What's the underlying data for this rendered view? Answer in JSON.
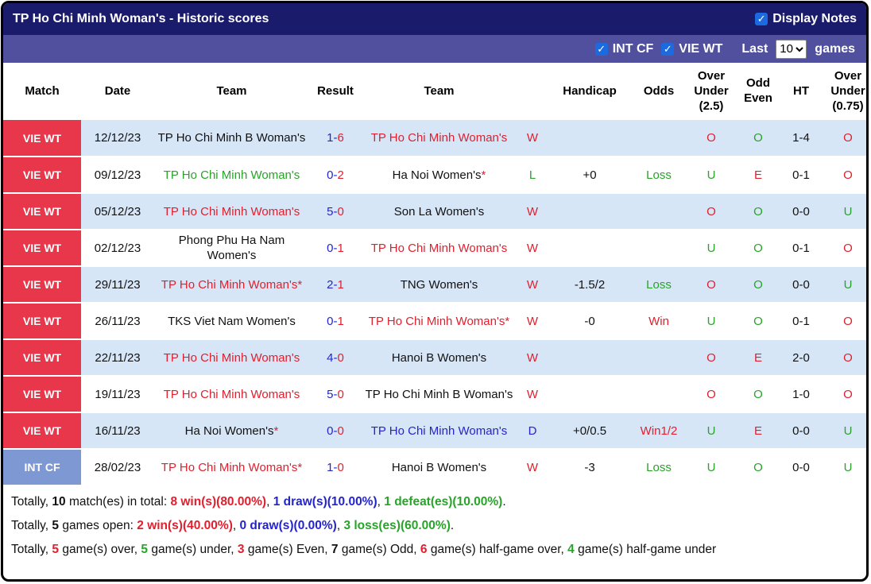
{
  "header": {
    "title": "TP Ho Chi Minh Woman's - Historic scores",
    "display_notes_label": "Display Notes"
  },
  "filter_bar": {
    "int_cf_label": "INT CF",
    "vie_wt_label": "VIE WT",
    "last_label": "Last",
    "last_value": "10",
    "games_label": "games"
  },
  "columns": [
    "Match",
    "Date",
    "Team",
    "Result",
    "Team",
    "",
    "Handicap",
    "Odds",
    "Over Under (2.5)",
    "Odd Even",
    "HT",
    "Over Under (0.75)"
  ],
  "colors": {
    "red": "#e0202e",
    "green": "#29a329",
    "blue": "#2424cc",
    "black": "#111111",
    "badge_red": "#e8364a",
    "badge_int": "#7e98d4",
    "header_navy": "#1b1b6b",
    "filter_bar_bg": "#50509f",
    "row_alt_blue": "#d7e6f7",
    "checkbox_blue": "#1b6ae0"
  },
  "rows": [
    {
      "league": "VIE WT",
      "badge": "red",
      "date": "12/12/23",
      "home": {
        "name": "TP Ho Chi Minh B Woman's",
        "color": "black",
        "star": false
      },
      "score_home": "1",
      "score_away": "6",
      "away": {
        "name": "TP Ho Chi Minh Woman's",
        "color": "red",
        "star": false
      },
      "outcome": {
        "t": "W",
        "c": "red"
      },
      "handicap": "",
      "odds": {
        "t": "",
        "c": "black"
      },
      "ou25": {
        "t": "O",
        "c": "red"
      },
      "oddeven": {
        "t": "O",
        "c": "green"
      },
      "ht": "1-4",
      "ou075": {
        "t": "O",
        "c": "red"
      }
    },
    {
      "league": "VIE WT",
      "badge": "red",
      "date": "09/12/23",
      "home": {
        "name": "TP Ho Chi Minh Woman's",
        "color": "green",
        "star": false
      },
      "score_home": "0",
      "score_away": "2",
      "away": {
        "name": "Ha Noi Women's",
        "color": "black",
        "star": true
      },
      "outcome": {
        "t": "L",
        "c": "green"
      },
      "handicap": "+0",
      "odds": {
        "t": "Loss",
        "c": "green"
      },
      "ou25": {
        "t": "U",
        "c": "green"
      },
      "oddeven": {
        "t": "E",
        "c": "red"
      },
      "ht": "0-1",
      "ou075": {
        "t": "O",
        "c": "red"
      }
    },
    {
      "league": "VIE WT",
      "badge": "red",
      "date": "05/12/23",
      "home": {
        "name": "TP Ho Chi Minh Woman's",
        "color": "red",
        "star": false
      },
      "score_home": "5",
      "score_away": "0",
      "away": {
        "name": "Son La Women's",
        "color": "black",
        "star": false
      },
      "outcome": {
        "t": "W",
        "c": "red"
      },
      "handicap": "",
      "odds": {
        "t": "",
        "c": "black"
      },
      "ou25": {
        "t": "O",
        "c": "red"
      },
      "oddeven": {
        "t": "O",
        "c": "green"
      },
      "ht": "0-0",
      "ou075": {
        "t": "U",
        "c": "green"
      }
    },
    {
      "league": "VIE WT",
      "badge": "red",
      "date": "02/12/23",
      "home": {
        "name": "Phong Phu Ha Nam Women's",
        "color": "black",
        "star": false
      },
      "score_home": "0",
      "score_away": "1",
      "away": {
        "name": "TP Ho Chi Minh Woman's",
        "color": "red",
        "star": false
      },
      "outcome": {
        "t": "W",
        "c": "red"
      },
      "handicap": "",
      "odds": {
        "t": "",
        "c": "black"
      },
      "ou25": {
        "t": "U",
        "c": "green"
      },
      "oddeven": {
        "t": "O",
        "c": "green"
      },
      "ht": "0-1",
      "ou075": {
        "t": "O",
        "c": "red"
      }
    },
    {
      "league": "VIE WT",
      "badge": "red",
      "date": "29/11/23",
      "home": {
        "name": "TP Ho Chi Minh Woman's",
        "color": "red",
        "star": true
      },
      "score_home": "2",
      "score_away": "1",
      "away": {
        "name": "TNG Women's",
        "color": "black",
        "star": false
      },
      "outcome": {
        "t": "W",
        "c": "red"
      },
      "handicap": "-1.5/2",
      "odds": {
        "t": "Loss",
        "c": "green"
      },
      "ou25": {
        "t": "O",
        "c": "red"
      },
      "oddeven": {
        "t": "O",
        "c": "green"
      },
      "ht": "0-0",
      "ou075": {
        "t": "U",
        "c": "green"
      }
    },
    {
      "league": "VIE WT",
      "badge": "red",
      "date": "26/11/23",
      "home": {
        "name": "TKS Viet Nam Women's",
        "color": "black",
        "star": false
      },
      "score_home": "0",
      "score_away": "1",
      "away": {
        "name": "TP Ho Chi Minh Woman's",
        "color": "red",
        "star": true
      },
      "outcome": {
        "t": "W",
        "c": "red"
      },
      "handicap": "-0",
      "odds": {
        "t": "Win",
        "c": "red"
      },
      "ou25": {
        "t": "U",
        "c": "green"
      },
      "oddeven": {
        "t": "O",
        "c": "green"
      },
      "ht": "0-1",
      "ou075": {
        "t": "O",
        "c": "red"
      }
    },
    {
      "league": "VIE WT",
      "badge": "red",
      "date": "22/11/23",
      "home": {
        "name": "TP Ho Chi Minh Woman's",
        "color": "red",
        "star": false
      },
      "score_home": "4",
      "score_away": "0",
      "away": {
        "name": "Hanoi B Women's",
        "color": "black",
        "star": false
      },
      "outcome": {
        "t": "W",
        "c": "red"
      },
      "handicap": "",
      "odds": {
        "t": "",
        "c": "black"
      },
      "ou25": {
        "t": "O",
        "c": "red"
      },
      "oddeven": {
        "t": "E",
        "c": "red"
      },
      "ht": "2-0",
      "ou075": {
        "t": "O",
        "c": "red"
      }
    },
    {
      "league": "VIE WT",
      "badge": "red",
      "date": "19/11/23",
      "home": {
        "name": "TP Ho Chi Minh Woman's",
        "color": "red",
        "star": false
      },
      "score_home": "5",
      "score_away": "0",
      "away": {
        "name": "TP Ho Chi Minh B Woman's",
        "color": "black",
        "star": false
      },
      "outcome": {
        "t": "W",
        "c": "red"
      },
      "handicap": "",
      "odds": {
        "t": "",
        "c": "black"
      },
      "ou25": {
        "t": "O",
        "c": "red"
      },
      "oddeven": {
        "t": "O",
        "c": "green"
      },
      "ht": "1-0",
      "ou075": {
        "t": "O",
        "c": "red"
      }
    },
    {
      "league": "VIE WT",
      "badge": "red",
      "date": "16/11/23",
      "home": {
        "name": "Ha Noi Women's",
        "color": "black",
        "star": true
      },
      "score_home": "0",
      "score_away": "0",
      "away": {
        "name": "TP Ho Chi Minh Woman's",
        "color": "blue",
        "star": false
      },
      "outcome": {
        "t": "D",
        "c": "blue"
      },
      "handicap": "+0/0.5",
      "odds": {
        "t": "Win1/2",
        "c": "red"
      },
      "ou25": {
        "t": "U",
        "c": "green"
      },
      "oddeven": {
        "t": "E",
        "c": "red"
      },
      "ht": "0-0",
      "ou075": {
        "t": "U",
        "c": "green"
      }
    },
    {
      "league": "INT CF",
      "badge": "int",
      "date": "28/02/23",
      "home": {
        "name": "TP Ho Chi Minh Woman's",
        "color": "red",
        "star": true
      },
      "score_home": "1",
      "score_away": "0",
      "away": {
        "name": "Hanoi B Women's",
        "color": "black",
        "star": false
      },
      "outcome": {
        "t": "W",
        "c": "red"
      },
      "handicap": "-3",
      "odds": {
        "t": "Loss",
        "c": "green"
      },
      "ou25": {
        "t": "U",
        "c": "green"
      },
      "oddeven": {
        "t": "O",
        "c": "green"
      },
      "ht": "0-0",
      "ou075": {
        "t": "U",
        "c": "green"
      }
    }
  ],
  "summary": [
    [
      {
        "t": "Totally, ",
        "c": "black"
      },
      {
        "t": "10",
        "c": "black",
        "b": true
      },
      {
        "t": " match(es) in total: ",
        "c": "black"
      },
      {
        "t": "8 win(s)(80.00%)",
        "c": "red",
        "b": true
      },
      {
        "t": ", ",
        "c": "black"
      },
      {
        "t": "1 draw(s)(10.00%)",
        "c": "blue",
        "b": true
      },
      {
        "t": ", ",
        "c": "black"
      },
      {
        "t": "1 defeat(es)(10.00%)",
        "c": "green",
        "b": true
      },
      {
        "t": ".",
        "c": "black"
      }
    ],
    [
      {
        "t": "Totally, ",
        "c": "black"
      },
      {
        "t": "5",
        "c": "black",
        "b": true
      },
      {
        "t": " games open: ",
        "c": "black"
      },
      {
        "t": "2 win(s)(40.00%)",
        "c": "red",
        "b": true
      },
      {
        "t": ", ",
        "c": "black"
      },
      {
        "t": "0 draw(s)(0.00%)",
        "c": "blue",
        "b": true
      },
      {
        "t": ", ",
        "c": "black"
      },
      {
        "t": "3 loss(es)(60.00%)",
        "c": "green",
        "b": true
      },
      {
        "t": ".",
        "c": "black"
      }
    ],
    [
      {
        "t": "Totally, ",
        "c": "black"
      },
      {
        "t": "5",
        "c": "red",
        "b": true
      },
      {
        "t": " game(s) over, ",
        "c": "black"
      },
      {
        "t": "5",
        "c": "green",
        "b": true
      },
      {
        "t": " game(s) under, ",
        "c": "black"
      },
      {
        "t": "3",
        "c": "red",
        "b": true
      },
      {
        "t": " game(s) Even, ",
        "c": "black"
      },
      {
        "t": "7",
        "c": "black",
        "b": true
      },
      {
        "t": " game(s) Odd, ",
        "c": "black"
      },
      {
        "t": "6",
        "c": "red",
        "b": true
      },
      {
        "t": " game(s) half-game over, ",
        "c": "black"
      },
      {
        "t": "4",
        "c": "green",
        "b": true
      },
      {
        "t": " game(s) half-game under",
        "c": "black"
      }
    ]
  ]
}
